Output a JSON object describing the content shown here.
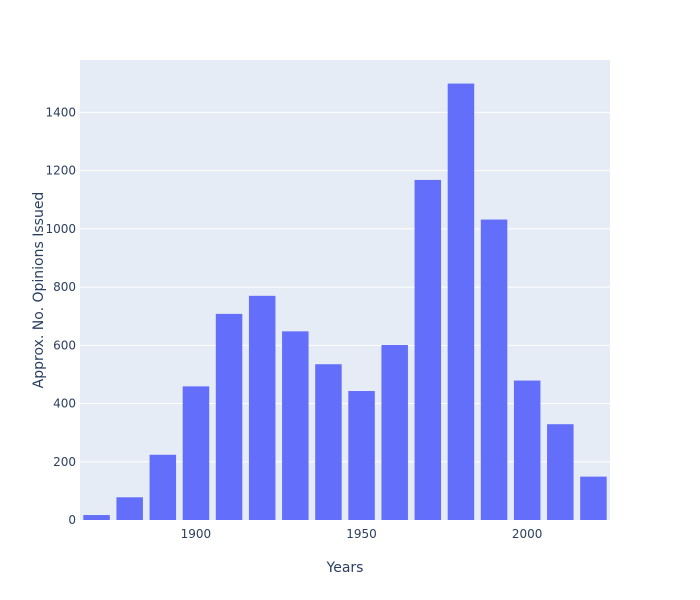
{
  "chart_data": {
    "type": "bar",
    "title": "",
    "xlabel": "Years",
    "ylabel": "Approx. No. Opinions Issued",
    "x": [
      1870,
      1880,
      1890,
      1900,
      1910,
      1920,
      1930,
      1940,
      1950,
      1960,
      1970,
      1980,
      1990,
      2000,
      2010,
      2020
    ],
    "values": [
      17,
      78,
      224,
      459,
      708,
      770,
      648,
      535,
      443,
      601,
      1168,
      1499,
      1032,
      479,
      329,
      149
    ],
    "xlim": [
      1865,
      2025
    ],
    "ylim": [
      0,
      1580
    ],
    "x_ticks": [
      1900,
      1950,
      2000
    ],
    "y_ticks": [
      0,
      200,
      400,
      600,
      800,
      1000,
      1200,
      1400
    ],
    "x_tick_labels": [
      "1900",
      "1950",
      "2000"
    ],
    "y_tick_labels": [
      "0",
      "200",
      "400",
      "600",
      "800",
      "1000",
      "1200",
      "1400"
    ],
    "grid": true,
    "legend": false,
    "colors": {
      "bar": "#636efa",
      "plot_bg": "#e5ecf6",
      "grid": "#ffffff",
      "text": "#2a3f5f"
    }
  }
}
